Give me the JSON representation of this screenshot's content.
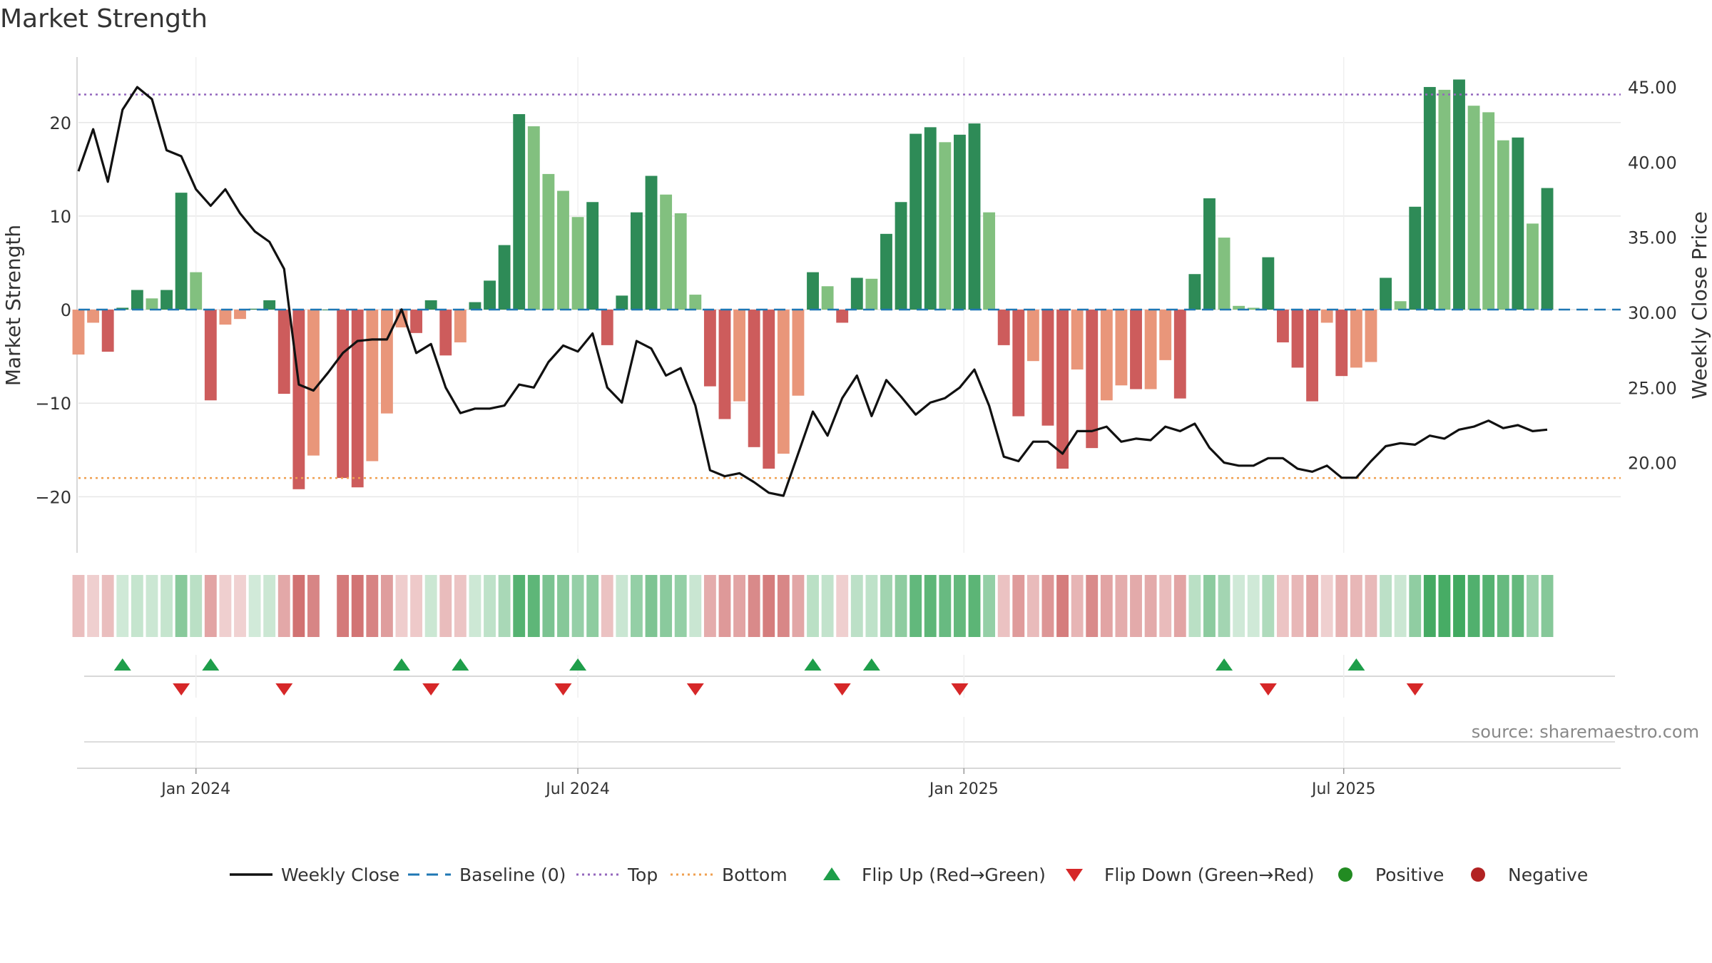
{
  "title": "Market Strength",
  "source": "source: sharemaestro.com",
  "chart_data": {
    "type": "bar",
    "title": "Market Strength",
    "ylabel": "Market Strength",
    "y2label": "Weekly Close Price",
    "ylim": [
      -26,
      27
    ],
    "y2lim": [
      14,
      47
    ],
    "yticks": [
      -20,
      -10,
      0,
      10,
      20
    ],
    "ytick_labels": [
      "−20",
      "−10",
      "0",
      "10",
      "20"
    ],
    "y2ticks": [
      20,
      25,
      30,
      35,
      40,
      45
    ],
    "y2tick_labels": [
      "20.00",
      "25.00",
      "30.00",
      "35.00",
      "40.00",
      "45.00"
    ],
    "x_dates": [
      "2024-01-01",
      "2024-07-01",
      "2025-01-01",
      "2025-07-01"
    ],
    "x_labels": [
      "Jan 2024",
      "Jul 2024",
      "Jan 2025",
      "Jul 2025"
    ],
    "top_line": 23,
    "bottom_line": -18,
    "baseline": 0,
    "grid": true,
    "colors": {
      "strong_positive": "#2e8b57",
      "weak_positive": "#82c07f",
      "strong_negative": "#cd5c5c",
      "weak_negative": "#e9967a",
      "price_line": "#111111",
      "top_line": "#9467bd",
      "bottom_line": "#f0a050",
      "baseline": "#1f77b4",
      "flip_up": "#1e9e4a",
      "flip_down": "#d62728",
      "positive_dot": "#228b22",
      "negative_dot": "#b22222"
    },
    "dates": [
      "2023-11-06",
      "2023-11-13",
      "2023-11-20",
      "2023-11-27",
      "2023-12-04",
      "2023-12-11",
      "2023-12-18",
      "2023-12-25",
      "2024-01-01",
      "2024-01-08",
      "2024-01-15",
      "2024-01-22",
      "2024-01-29",
      "2024-02-05",
      "2024-02-12",
      "2024-02-19",
      "2024-02-26",
      "2024-03-04",
      "2024-03-11",
      "2024-03-18",
      "2024-03-25",
      "2024-04-01",
      "2024-04-08",
      "2024-04-15",
      "2024-04-22",
      "2024-04-29",
      "2024-05-06",
      "2024-05-13",
      "2024-05-20",
      "2024-05-27",
      "2024-06-03",
      "2024-06-10",
      "2024-06-17",
      "2024-06-24",
      "2024-07-01",
      "2024-07-08",
      "2024-07-15",
      "2024-07-22",
      "2024-07-29",
      "2024-08-05",
      "2024-08-12",
      "2024-08-19",
      "2024-08-26",
      "2024-09-02",
      "2024-09-09",
      "2024-09-16",
      "2024-09-23",
      "2024-09-30",
      "2024-10-07",
      "2024-10-14",
      "2024-10-21",
      "2024-10-28",
      "2024-11-04",
      "2024-11-11",
      "2024-11-18",
      "2024-11-25",
      "2024-12-02",
      "2024-12-09",
      "2024-12-16",
      "2024-12-23",
      "2024-12-30",
      "2025-01-06",
      "2025-01-13",
      "2025-01-20",
      "2025-01-27",
      "2025-02-03",
      "2025-02-10",
      "2025-02-17",
      "2025-02-24",
      "2025-03-03",
      "2025-03-10",
      "2025-03-17",
      "2025-03-24",
      "2025-03-31",
      "2025-04-07",
      "2025-04-14",
      "2025-04-21",
      "2025-04-28",
      "2025-05-05",
      "2025-05-12",
      "2025-05-19",
      "2025-05-26",
      "2025-06-02",
      "2025-06-09",
      "2025-06-16",
      "2025-06-23",
      "2025-06-30",
      "2025-07-07",
      "2025-07-14",
      "2025-07-21",
      "2025-07-28",
      "2025-08-04",
      "2025-08-11",
      "2025-08-18",
      "2025-08-25",
      "2025-09-01",
      "2025-09-08",
      "2025-09-15",
      "2025-09-22",
      "2025-09-29",
      "2025-10-06",
      "2025-10-13",
      "2025-10-20",
      "2025-10-27",
      "2025-11-03",
      "2025-11-10"
    ],
    "strength": [
      -4.8,
      -1.4,
      -4.5,
      0.2,
      2.1,
      1.2,
      2.1,
      12.5,
      4.0,
      -9.7,
      -1.6,
      -1.0,
      0.1,
      1.0,
      -9.0,
      -19.2,
      -15.6,
      0.0,
      -18.0,
      -19.0,
      -16.2,
      -11.1,
      -1.9,
      -2.5,
      1.0,
      -4.9,
      -3.5,
      0.8,
      3.1,
      6.9,
      20.9,
      19.6,
      14.5,
      12.7,
      9.9,
      11.5,
      -3.8,
      1.5,
      10.4,
      14.3,
      12.3,
      10.3,
      1.6,
      -8.2,
      -11.7,
      -9.8,
      -14.7,
      -17.0,
      -15.4,
      -9.2,
      4.0,
      2.5,
      -1.4,
      3.4,
      3.3,
      8.1,
      11.5,
      18.8,
      19.5,
      17.9,
      18.7,
      19.9,
      10.4,
      -3.8,
      -11.4,
      -5.5,
      -12.4,
      -17.0,
      -6.4,
      -14.8,
      -9.7,
      -8.1,
      -8.5,
      -8.5,
      -5.4,
      -9.5,
      3.8,
      11.9,
      7.7,
      0.4,
      0.2,
      5.6,
      -3.5,
      -6.2,
      -9.8,
      -1.4,
      -7.1,
      -6.2,
      -5.6,
      3.4,
      0.9,
      11.0,
      23.8,
      23.5,
      24.6,
      21.8,
      21.1,
      18.1,
      18.4,
      9.2,
      13.0
    ],
    "weekly_close": [
      39.4,
      42.2,
      38.7,
      43.5,
      45.0,
      44.2,
      40.8,
      40.4,
      38.2,
      37.1,
      38.2,
      36.6,
      35.4,
      34.7,
      32.9,
      25.2,
      24.8,
      26.0,
      27.3,
      28.1,
      28.2,
      28.2,
      30.2,
      27.3,
      27.9,
      25.0,
      23.3,
      23.6,
      23.6,
      23.8,
      25.2,
      25.0,
      26.7,
      27.8,
      27.4,
      28.6,
      25.0,
      24.0,
      28.1,
      27.6,
      25.8,
      26.3,
      23.8,
      19.5,
      19.1,
      19.3,
      18.7,
      18.0,
      17.8,
      20.6,
      23.4,
      21.8,
      24.3,
      25.8,
      23.1,
      25.5,
      24.4,
      23.2,
      24.0,
      24.3,
      25.0,
      26.2,
      23.8,
      20.4,
      20.1,
      21.4,
      21.4,
      20.6,
      22.1,
      22.1,
      22.4,
      21.4,
      21.6,
      21.5,
      22.4,
      22.1,
      22.6,
      21.0,
      20.0,
      19.8,
      19.8,
      20.3,
      20.3,
      19.6,
      19.4,
      19.8,
      19.0,
      19.0,
      20.1,
      21.1,
      21.3,
      21.2,
      21.8,
      21.6,
      22.2,
      22.4,
      22.8,
      22.3,
      22.5,
      22.1,
      22.2
    ],
    "flip_up_dates": [
      "2023-11-27",
      "2024-01-08",
      "2024-04-08",
      "2024-05-06",
      "2024-07-01",
      "2024-10-21",
      "2024-11-18",
      "2025-05-05",
      "2025-07-07"
    ],
    "flip_down_dates": [
      "2023-12-25",
      "2024-02-12",
      "2024-04-22",
      "2024-06-24",
      "2024-08-26",
      "2024-11-04",
      "2024-12-30",
      "2025-05-26",
      "2025-08-04"
    ],
    "legend": [
      {
        "label": "Weekly Close",
        "symbol": "line-solid",
        "color": "#111111"
      },
      {
        "label": "Baseline (0)",
        "symbol": "line-dashed",
        "color": "#1f77b4"
      },
      {
        "label": "Top",
        "symbol": "line-dotted",
        "color": "#9467bd"
      },
      {
        "label": "Bottom",
        "symbol": "line-dotted",
        "color": "#f0a050"
      },
      {
        "label": "Flip Up (Red→Green)",
        "symbol": "triangle-up",
        "color": "#1e9e4a"
      },
      {
        "label": "Flip Down (Green→Red)",
        "symbol": "triangle-down",
        "color": "#d62728"
      },
      {
        "label": "Positive",
        "symbol": "dot",
        "color": "#228b22"
      },
      {
        "label": "Negative",
        "symbol": "dot",
        "color": "#b22222"
      }
    ]
  }
}
